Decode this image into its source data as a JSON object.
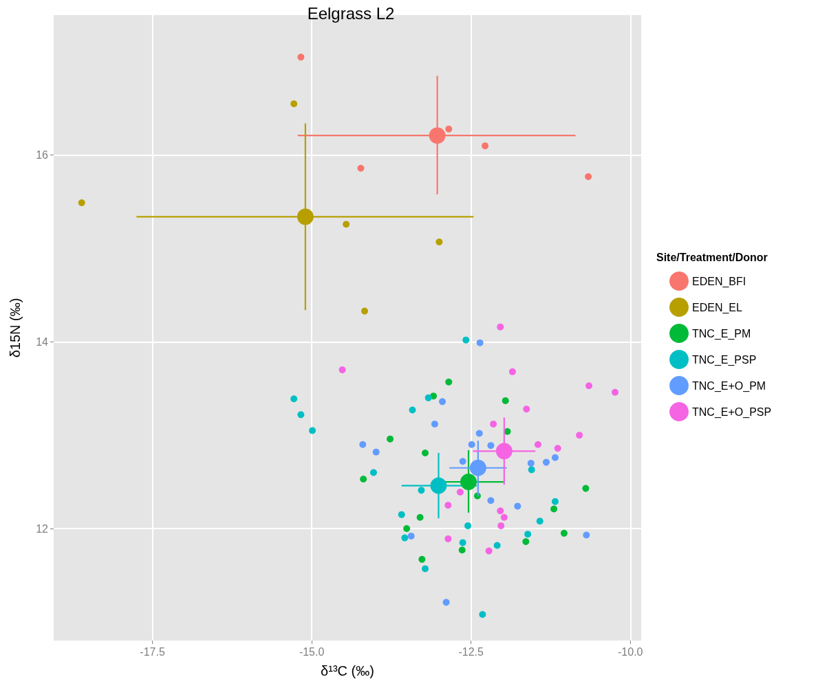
{
  "chart_data": {
    "type": "scatter",
    "title": "Eelgrass L2",
    "xlabel": "δ¹³C (‰)",
    "ylabel": "δ15N (‰)",
    "legend_title": "Site/Treatment/Donor",
    "legend": "right",
    "grid": true,
    "marker": "circle",
    "xlim": [
      -19.05,
      -9.83
    ],
    "xticks": [
      {
        "value": -17.5,
        "label": "-17.5"
      },
      {
        "value": -15,
        "label": "-15.0"
      },
      {
        "value": -12.5,
        "label": "-12.5"
      },
      {
        "value": -10,
        "label": "-10.0"
      }
    ],
    "ylim": [
      10.8,
      17.5
    ],
    "yticks": [
      12,
      14,
      16
    ],
    "series": [
      {
        "name": "EDEN_BFI",
        "color": "#f8766d",
        "x": [
          -15.17,
          -12.85,
          -12.28,
          -14.23,
          -10.66
        ],
        "values": [
          17.05,
          16.28,
          16.1,
          15.86,
          15.77
        ]
      },
      {
        "color": "#f8766d",
        "x": [
          -13.03
        ],
        "values": [
          16.21
        ],
        "errors": [
          [
            15.58,
            16.85
          ]
        ],
        "xerrors": [
          [
            -15.22,
            -10.86
          ]
        ]
      },
      {
        "name": "EDEN_EL",
        "color": "#b79f00",
        "x": [
          -15.28,
          -18.61,
          -14.46,
          -13.0,
          -14.17
        ],
        "values": [
          16.55,
          15.49,
          15.26,
          15.07,
          14.33
        ]
      },
      {
        "color": "#b79f00",
        "x": [
          -15.1
        ],
        "values": [
          15.34
        ],
        "errors": [
          [
            14.34,
            16.34
          ]
        ],
        "xerrors": [
          [
            -17.75,
            -12.46
          ]
        ]
      },
      {
        "name": "TNC_E_PM",
        "color": "#00ba38",
        "x": [
          -12.85,
          -13.09,
          -11.96,
          -11.93,
          -13.77,
          -13.22,
          -14.19,
          -12.4,
          -10.7,
          -11.2,
          -13.3,
          -13.51,
          -11.04,
          -11.64,
          -12.64,
          -13.27
        ],
        "values": [
          13.57,
          13.42,
          13.37,
          13.04,
          12.96,
          12.81,
          12.53,
          12.35,
          12.43,
          12.21,
          12.12,
          12.0,
          11.95,
          11.86,
          11.77,
          11.67
        ]
      },
      {
        "color": "#00ba38",
        "x": [
          -12.54
        ],
        "values": [
          12.5
        ],
        "errors": [
          [
            12.17,
            12.84
          ]
        ],
        "xerrors": [
          [
            -13.09,
            -11.99
          ]
        ]
      },
      {
        "name": "TNC_E_PSP",
        "color": "#00bfc4",
        "x": [
          -12.58,
          -15.28,
          -15.17,
          -14.99,
          -13.17,
          -13.42,
          -11.55,
          -14.03,
          -13.28,
          -11.18,
          -13.59,
          -12.55,
          -11.42,
          -11.61,
          -13.54,
          -12.63,
          -12.09,
          -13.22,
          -12.32
        ],
        "values": [
          14.02,
          13.39,
          13.22,
          13.05,
          13.4,
          13.27,
          12.63,
          12.6,
          12.41,
          12.29,
          12.15,
          12.03,
          12.08,
          11.94,
          11.9,
          11.85,
          11.82,
          11.57,
          11.08
        ]
      },
      {
        "color": "#00bfc4",
        "x": [
          -13.01
        ],
        "values": [
          12.46
        ],
        "errors": [
          [
            12.11,
            12.81
          ]
        ],
        "xerrors": [
          [
            -13.59,
            -12.41
          ]
        ]
      },
      {
        "name": "TNC_E+O_PM",
        "color": "#619cff",
        "x": [
          -12.36,
          -12.95,
          -13.07,
          -12.37,
          -14.2,
          -12.49,
          -12.19,
          -13.99,
          -12.63,
          -11.56,
          -11.32,
          -11.18,
          -12.19,
          -11.77,
          -13.44,
          -10.69,
          -12.89
        ],
        "values": [
          13.99,
          13.36,
          13.12,
          13.02,
          12.9,
          12.9,
          12.89,
          12.82,
          12.72,
          12.7,
          12.71,
          12.76,
          12.3,
          12.24,
          11.92,
          11.93,
          11.21
        ]
      },
      {
        "color": "#619cff",
        "x": [
          -12.39
        ],
        "values": [
          12.65
        ],
        "errors": [
          [
            12.35,
            12.94
          ]
        ],
        "xerrors": [
          [
            -12.84,
            -11.94
          ]
        ]
      },
      {
        "name": "TNC_E+O_PSP",
        "color": "#f564e3",
        "x": [
          -12.04,
          -14.52,
          -11.85,
          -10.65,
          -10.24,
          -11.63,
          -12.15,
          -10.8,
          -11.45,
          -11.14,
          -12.67,
          -12.86,
          -12.04,
          -11.98,
          -12.03,
          -12.86,
          -12.22
        ],
        "values": [
          14.16,
          13.7,
          13.68,
          13.53,
          13.46,
          13.28,
          13.12,
          13.0,
          12.9,
          12.86,
          12.39,
          12.25,
          12.19,
          12.12,
          12.03,
          11.89,
          11.76
        ]
      },
      {
        "color": "#f564e3",
        "x": [
          -11.98
        ],
        "values": [
          12.83
        ],
        "errors": [
          [
            12.47,
            13.19
          ]
        ],
        "xerrors": [
          [
            -12.47,
            -11.49
          ]
        ]
      }
    ]
  }
}
